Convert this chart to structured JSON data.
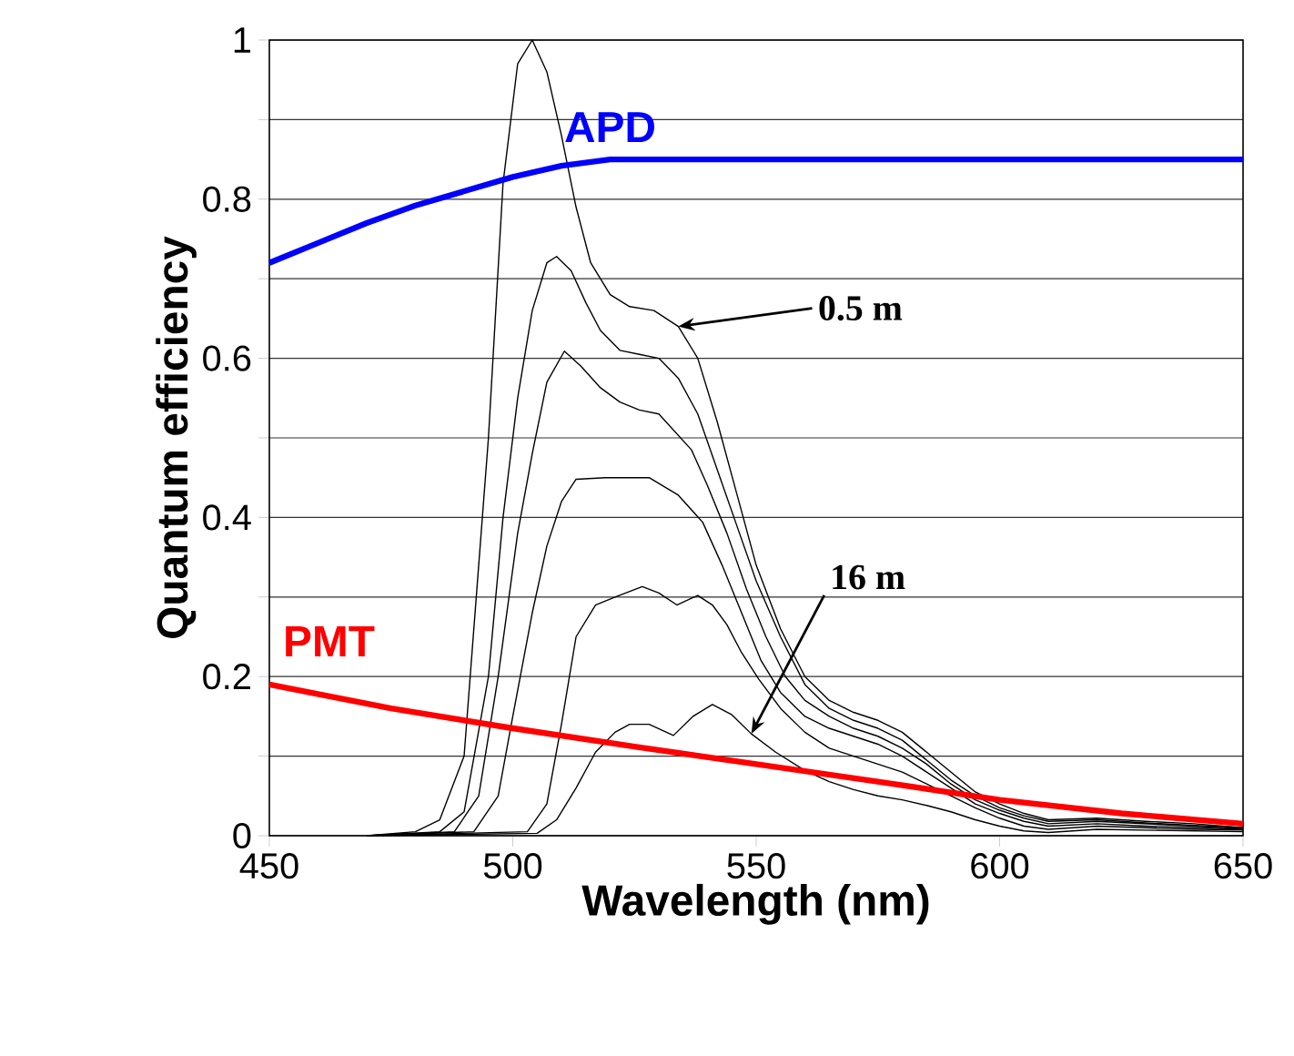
{
  "chart_data": {
    "type": "line",
    "xlabel": "Wavelength (nm)",
    "ylabel": "Quantum efficiency",
    "xlim": [
      450,
      650
    ],
    "ylim": [
      0,
      1
    ],
    "xticks": [
      450,
      500,
      550,
      600,
      650
    ],
    "yticks": [
      0,
      {
        "value": 0.1,
        "label": null
      },
      0.2,
      {
        "value": 0.3,
        "label": null
      },
      0.4,
      {
        "value": 0.5,
        "label": null
      },
      0.6,
      {
        "value": 0.7,
        "label": null
      },
      0.8,
      {
        "value": 0.9,
        "label": null
      },
      1
    ],
    "grid": "y",
    "series": [
      {
        "color": "#000000",
        "x": [
          470,
          480,
          485,
          490,
          495,
          498,
          501,
          504,
          507,
          510,
          513,
          516,
          520,
          524,
          529,
          534,
          538,
          542,
          546,
          550,
          555,
          560,
          565,
          570,
          575,
          580,
          585,
          590,
          595,
          600,
          605,
          610,
          620,
          630,
          640,
          650
        ],
        "values": [
          0,
          0.005,
          0.02,
          0.1,
          0.5,
          0.82,
          0.97,
          1.0,
          0.96,
          0.88,
          0.79,
          0.72,
          0.68,
          0.665,
          0.66,
          0.64,
          0.6,
          0.52,
          0.43,
          0.34,
          0.26,
          0.2,
          0.17,
          0.155,
          0.145,
          0.13,
          0.105,
          0.08,
          0.055,
          0.04,
          0.028,
          0.02,
          0.022,
          0.018,
          0.015,
          0.01
        ]
      },
      {
        "color": "#000000",
        "x": [
          470,
          485,
          490,
          495,
          498,
          501,
          504,
          507,
          509,
          512,
          515,
          518,
          522,
          526,
          530,
          534,
          538,
          542,
          546,
          550,
          555,
          560,
          565,
          570,
          575,
          580,
          585,
          590,
          595,
          600,
          605,
          610,
          620,
          630,
          640,
          650
        ],
        "values": [
          0,
          0.005,
          0.03,
          0.2,
          0.4,
          0.55,
          0.66,
          0.72,
          0.728,
          0.71,
          0.67,
          0.635,
          0.61,
          0.605,
          0.6,
          0.575,
          0.53,
          0.46,
          0.39,
          0.32,
          0.25,
          0.19,
          0.16,
          0.145,
          0.135,
          0.12,
          0.095,
          0.07,
          0.05,
          0.035,
          0.025,
          0.018,
          0.02,
          0.016,
          0.013,
          0.01
        ]
      },
      {
        "color": "#000000",
        "x": [
          470,
          488,
          493,
          497,
          501,
          504,
          507,
          510.6,
          514,
          518,
          522,
          526,
          530,
          536.7,
          540,
          544,
          548,
          552,
          556,
          560,
          565,
          570,
          575,
          580,
          585,
          590,
          595,
          600,
          605,
          610,
          620,
          630,
          640,
          650
        ],
        "values": [
          0,
          0.005,
          0.05,
          0.2,
          0.38,
          0.48,
          0.57,
          0.609,
          0.59,
          0.563,
          0.545,
          0.535,
          0.53,
          0.485,
          0.44,
          0.38,
          0.31,
          0.25,
          0.2,
          0.17,
          0.15,
          0.135,
          0.125,
          0.11,
          0.09,
          0.065,
          0.045,
          0.032,
          0.022,
          0.015,
          0.018,
          0.015,
          0.012,
          0.009
        ]
      },
      {
        "color": "#000000",
        "x": [
          470,
          492,
          497,
          500,
          504,
          507,
          510,
          513,
          519,
          528,
          534,
          539,
          543,
          547,
          551,
          555,
          560,
          565,
          570,
          575,
          580,
          585,
          590,
          595,
          600,
          605,
          610,
          620,
          630,
          640,
          650
        ],
        "values": [
          0,
          0.005,
          0.05,
          0.15,
          0.28,
          0.364,
          0.42,
          0.448,
          0.45,
          0.45,
          0.428,
          0.394,
          0.34,
          0.28,
          0.22,
          0.18,
          0.15,
          0.135,
          0.125,
          0.115,
          0.1,
          0.08,
          0.06,
          0.04,
          0.028,
          0.018,
          0.012,
          0.015,
          0.012,
          0.01,
          0.008
        ]
      },
      {
        "color": "#000000",
        "x": [
          470,
          503,
          507,
          510,
          513,
          517,
          521,
          526.6,
          530,
          533.7,
          538,
          541,
          544,
          547,
          550.5,
          555,
          560,
          565,
          570,
          575,
          580,
          585,
          590,
          595,
          600,
          605,
          610,
          620,
          630,
          640,
          650
        ],
        "values": [
          0,
          0.005,
          0.04,
          0.14,
          0.25,
          0.29,
          0.3,
          0.313,
          0.305,
          0.29,
          0.302,
          0.29,
          0.265,
          0.23,
          0.197,
          0.16,
          0.13,
          0.11,
          0.1,
          0.09,
          0.08,
          0.065,
          0.05,
          0.035,
          0.022,
          0.012,
          0.008,
          0.012,
          0.01,
          0.008,
          0.007
        ]
      },
      {
        "color": "#000000",
        "x": [
          470,
          505,
          509,
          513,
          517,
          521,
          524,
          528,
          533,
          537,
          541,
          545,
          549,
          554,
          560,
          565,
          570,
          575,
          580,
          585,
          590,
          595,
          600,
          605,
          610,
          620,
          630,
          640,
          650
        ],
        "values": [
          0,
          0.003,
          0.02,
          0.06,
          0.105,
          0.13,
          0.14,
          0.14,
          0.126,
          0.15,
          0.165,
          0.152,
          0.128,
          0.105,
          0.082,
          0.068,
          0.058,
          0.05,
          0.045,
          0.038,
          0.03,
          0.02,
          0.012,
          0.006,
          0.004,
          0.008,
          0.007,
          0.006,
          0.005
        ]
      },
      {
        "name": "APD",
        "color": "#0000ff",
        "x": [
          450,
          460,
          470,
          480,
          490,
          500,
          510,
          520,
          650
        ],
        "values": [
          0.72,
          0.745,
          0.77,
          0.792,
          0.81,
          0.828,
          0.842,
          0.85,
          0.85
        ]
      },
      {
        "name": "PMT",
        "color": "#ff0000",
        "x": [
          450,
          475,
          500,
          525,
          550,
          575,
          600,
          625,
          650
        ],
        "values": [
          0.19,
          0.16,
          0.135,
          0.112,
          0.09,
          0.068,
          0.045,
          0.028,
          0.015
        ]
      }
    ],
    "annotations": [
      {
        "text": "0.5 m",
        "x": 534,
        "y": 0.64
      },
      {
        "text": "16 m",
        "x": 549,
        "y": 0.128
      }
    ]
  }
}
